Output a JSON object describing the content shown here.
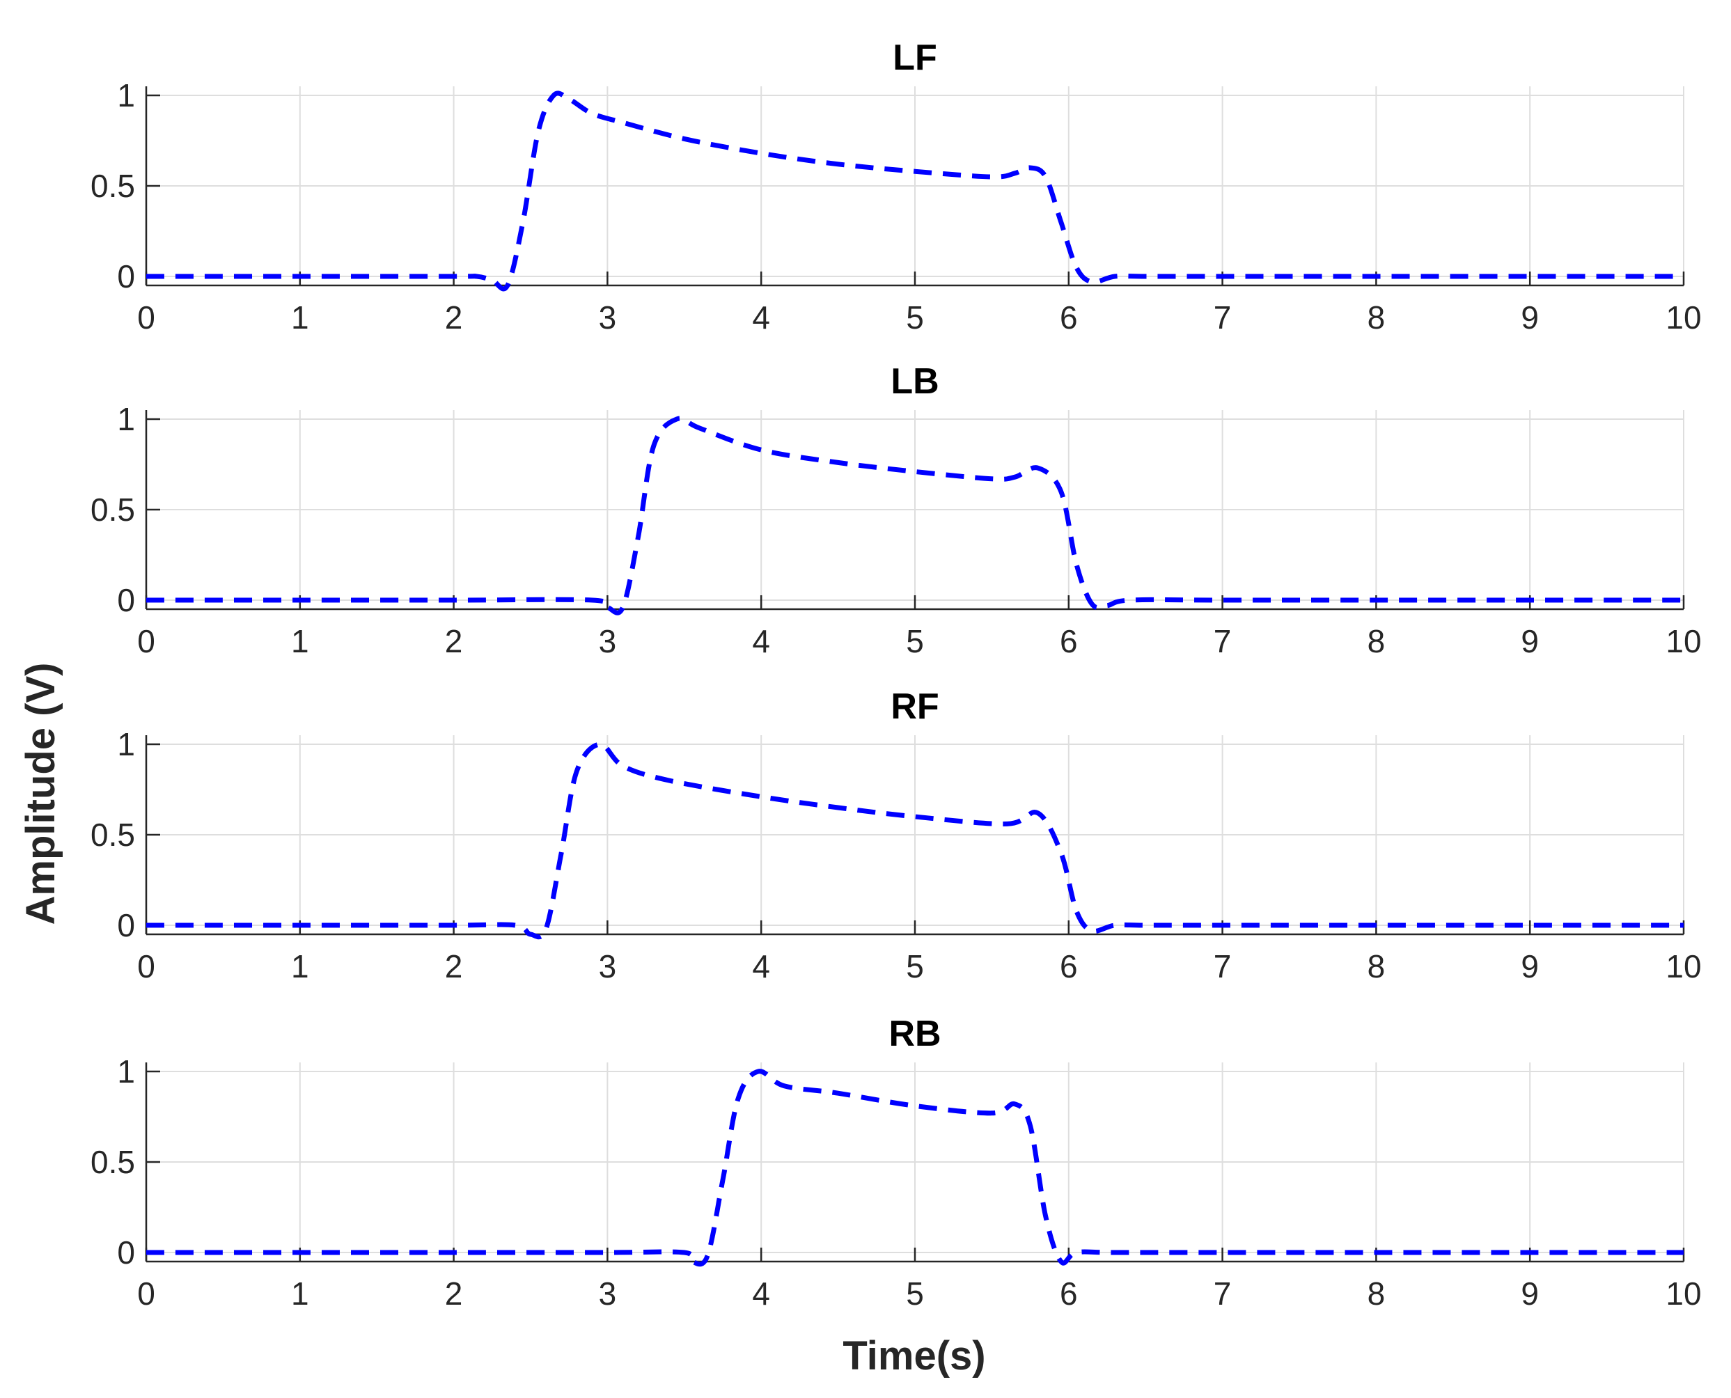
{
  "chart_data": {
    "type": "line",
    "xlabel": "Time(s)",
    "ylabel": "Amplitude (V)",
    "line_color": "#0000ff",
    "line_style": "dashed",
    "grid": true,
    "panels": [
      {
        "title": "LF",
        "xlim": [
          0,
          10
        ],
        "ylim": [
          -0.05,
          1.05
        ],
        "xticks": [
          "0",
          "1",
          "2",
          "3",
          "4",
          "5",
          "6",
          "7",
          "8",
          "9",
          "10"
        ],
        "yticks": [
          "0",
          "0.5",
          "1"
        ],
        "x": [
          0,
          1,
          2,
          2.15,
          2.25,
          2.35,
          2.45,
          2.55,
          2.65,
          2.75,
          2.9,
          3.1,
          3.5,
          4,
          4.5,
          5,
          5.5,
          5.65,
          5.75,
          5.85,
          5.95,
          6.05,
          6.15,
          6.3,
          6.5,
          7,
          8,
          9,
          10
        ],
        "y": [
          0,
          0,
          0,
          0,
          -0.02,
          -0.05,
          0.3,
          0.8,
          1.0,
          0.98,
          0.9,
          0.85,
          0.76,
          0.68,
          0.62,
          0.58,
          0.55,
          0.57,
          0.6,
          0.55,
          0.3,
          0.05,
          -0.03,
          0,
          0,
          0,
          0,
          0,
          0
        ]
      },
      {
        "title": "LB",
        "xlim": [
          0,
          10
        ],
        "ylim": [
          -0.05,
          1.05
        ],
        "xticks": [
          "0",
          "1",
          "2",
          "3",
          "4",
          "5",
          "6",
          "7",
          "8",
          "9",
          "10"
        ],
        "yticks": [
          "0",
          "0.5",
          "1"
        ],
        "x": [
          0,
          1,
          2,
          2.9,
          3.0,
          3.1,
          3.2,
          3.3,
          3.45,
          3.6,
          4,
          4.5,
          5,
          5.5,
          5.65,
          5.8,
          5.95,
          6.05,
          6.15,
          6.25,
          6.4,
          7,
          8,
          9,
          10
        ],
        "y": [
          0,
          0,
          0,
          0,
          -0.04,
          -0.04,
          0.35,
          0.85,
          1.0,
          0.95,
          0.83,
          0.76,
          0.71,
          0.67,
          0.68,
          0.73,
          0.6,
          0.2,
          -0.02,
          -0.03,
          0,
          0,
          0,
          0,
          0
        ]
      },
      {
        "title": "RF",
        "xlim": [
          0,
          10
        ],
        "ylim": [
          -0.05,
          1.05
        ],
        "xticks": [
          "0",
          "1",
          "2",
          "3",
          "4",
          "5",
          "6",
          "7",
          "8",
          "9",
          "10"
        ],
        "yticks": [
          "0",
          "0.5",
          "1"
        ],
        "x": [
          0,
          1,
          2,
          2.4,
          2.5,
          2.6,
          2.7,
          2.8,
          2.95,
          3.1,
          3.4,
          4,
          4.5,
          5,
          5.6,
          5.8,
          5.95,
          6.05,
          6.15,
          6.3,
          6.5,
          7,
          8,
          9,
          10
        ],
        "y": [
          0,
          0,
          0,
          0,
          -0.05,
          -0.02,
          0.4,
          0.85,
          1.0,
          0.88,
          0.8,
          0.71,
          0.65,
          0.6,
          0.56,
          0.62,
          0.4,
          0.08,
          -0.03,
          0,
          0,
          0,
          0,
          0,
          0
        ]
      },
      {
        "title": "RB",
        "xlim": [
          0,
          10
        ],
        "ylim": [
          -0.05,
          1.05
        ],
        "xticks": [
          "0",
          "1",
          "2",
          "3",
          "4",
          "5",
          "6",
          "7",
          "8",
          "9",
          "10"
        ],
        "yticks": [
          "0",
          "0.5",
          "1"
        ],
        "x": [
          0,
          1,
          2,
          3,
          3.5,
          3.55,
          3.65,
          3.75,
          3.85,
          3.98,
          4.15,
          4.5,
          5,
          5.5,
          5.65,
          5.75,
          5.85,
          5.95,
          6.05,
          6.3,
          7,
          8,
          9,
          10
        ],
        "y": [
          0,
          0,
          0,
          0,
          0,
          -0.05,
          -0.02,
          0.4,
          0.85,
          1.0,
          0.92,
          0.88,
          0.81,
          0.77,
          0.82,
          0.7,
          0.2,
          -0.05,
          0,
          0,
          0,
          0,
          0,
          0
        ]
      }
    ]
  }
}
